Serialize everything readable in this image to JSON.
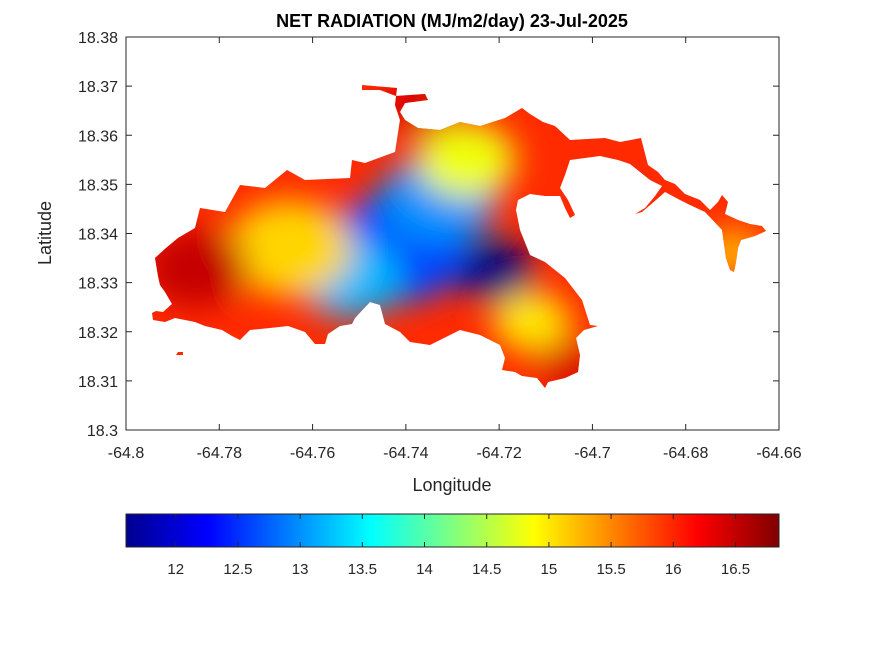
{
  "chart_data": {
    "type": "heatmap",
    "title": "NET RADIATION (MJ/m2/day) 23-Jul-2025",
    "xlabel": "Longitude",
    "ylabel": "Latitude",
    "xlim": [
      -64.8,
      -64.66
    ],
    "ylim": [
      18.3,
      18.38
    ],
    "x_ticks": [
      -64.8,
      -64.78,
      -64.76,
      -64.74,
      -64.72,
      -64.7,
      -64.68,
      -64.66
    ],
    "x_tick_labels": [
      "-64.8",
      "-64.78",
      "-64.76",
      "-64.74",
      "-64.72",
      "-64.7",
      "-64.68",
      "-64.66"
    ],
    "y_ticks": [
      18.3,
      18.31,
      18.32,
      18.33,
      18.34,
      18.35,
      18.36,
      18.37,
      18.38
    ],
    "y_tick_labels": [
      "18.3",
      "18.31",
      "18.32",
      "18.33",
      "18.34",
      "18.35",
      "18.36",
      "18.37",
      "18.38"
    ],
    "grid": false,
    "colormap": "jet",
    "colorbar": {
      "orientation": "horizontal",
      "position": "bottom",
      "range": [
        11.6,
        16.85
      ],
      "ticks": [
        12,
        12.5,
        13,
        13.5,
        14,
        14.5,
        15,
        15.5,
        16,
        16.5
      ],
      "tick_labels": [
        "12",
        "12.5",
        "13",
        "13.5",
        "14",
        "14.5",
        "15",
        "15.5",
        "16",
        "16.5"
      ]
    },
    "value_field_centers": [
      {
        "lon": -64.721,
        "lat": 18.3325,
        "value": 11.6
      },
      {
        "lon": -64.742,
        "lat": 18.337,
        "value": 12.6
      },
      {
        "lon": -64.733,
        "lat": 18.347,
        "value": 13.0
      },
      {
        "lon": -64.752,
        "lat": 18.331,
        "value": 13.2
      },
      {
        "lon": -64.727,
        "lat": 18.355,
        "value": 14.8
      },
      {
        "lon": -64.765,
        "lat": 18.337,
        "value": 15.1
      },
      {
        "lon": -64.713,
        "lat": 18.322,
        "value": 15.0
      },
      {
        "lon": -64.785,
        "lat": 18.333,
        "value": 16.5
      },
      {
        "lon": -64.737,
        "lat": 18.366,
        "value": 16.4
      },
      {
        "lon": -64.705,
        "lat": 18.313,
        "value": 16.4
      },
      {
        "lon": -64.67,
        "lat": 18.336,
        "value": 15.3
      }
    ]
  }
}
